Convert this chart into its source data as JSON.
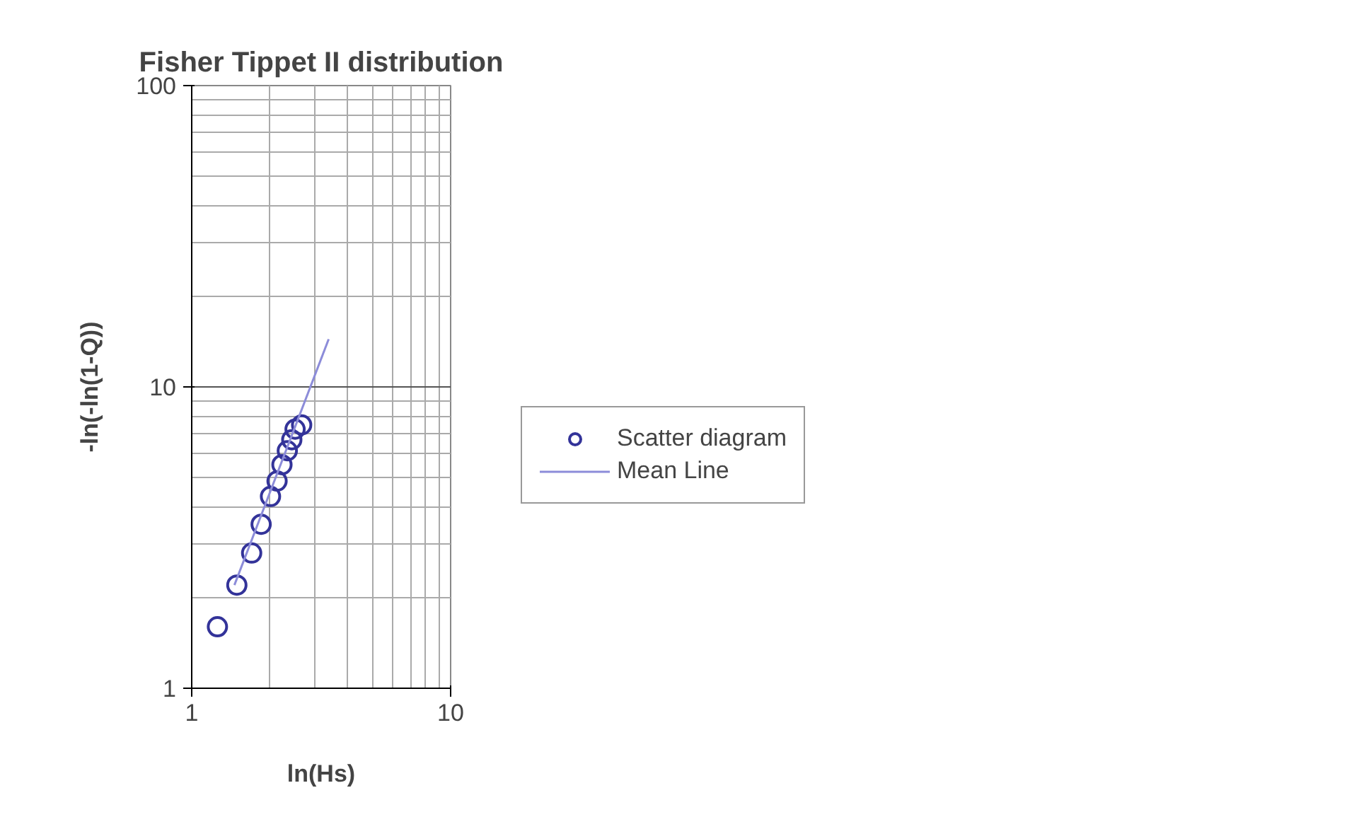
{
  "chart_data": {
    "type": "scatter",
    "title": "Fisher Tippet II distribution",
    "xlabel": "ln(Hs)",
    "ylabel": "-ln(-ln(1-Q))",
    "log": "xy",
    "xlim": [
      1,
      10
    ],
    "ylim": [
      1,
      100
    ],
    "xticks": [
      1,
      10
    ],
    "yticks": [
      1,
      10,
      100
    ],
    "grid": true,
    "legend": "right",
    "series": [
      {
        "name": "Scatter diagram",
        "marker": "circle",
        "color": "#333399",
        "x": [
          1.257,
          1.494,
          1.704,
          1.854,
          2.015,
          2.136,
          2.231,
          2.34,
          2.435,
          2.507,
          2.658
        ],
        "values": [
          1.6,
          2.2,
          2.81,
          3.5,
          4.33,
          4.87,
          5.52,
          6.14,
          6.68,
          7.24,
          7.48
        ]
      },
      {
        "name": "Mean Line",
        "type": "line",
        "marker": "none",
        "line_style": "solid",
        "color": "#8c8cd9",
        "x": [
          1.462,
          3.38
        ],
        "values": [
          2.2,
          14.4
        ]
      }
    ]
  }
}
